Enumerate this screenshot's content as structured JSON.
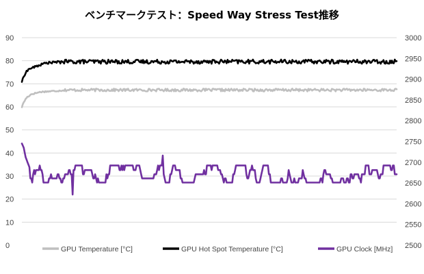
{
  "chart_data": {
    "type": "line",
    "title": "ベンチマークテスト：Speed Way Stress Test推移",
    "xlabel": "",
    "ylabel": "",
    "y_left": {
      "range": [
        0,
        90
      ],
      "ticks": [
        "0",
        "10",
        "20",
        "30",
        "40",
        "50",
        "60",
        "70",
        "80",
        "90"
      ]
    },
    "y_right": {
      "range": [
        2500,
        3000
      ],
      "ticks": [
        "2500",
        "2550",
        "2600",
        "2650",
        "2700",
        "2750",
        "2800",
        "2850",
        "2900",
        "2950",
        "3000"
      ]
    },
    "grid": true,
    "legend_position": "bottom",
    "sample_count": 400,
    "series": [
      {
        "name": "GPU Temperature [°C]",
        "axis": "left",
        "color": "#bfbfbf",
        "start_profile": [
          {
            "x": 0,
            "y": 60
          },
          {
            "x": 2,
            "y": 62
          },
          {
            "x": 5,
            "y": 64
          },
          {
            "x": 10,
            "y": 65.5
          },
          {
            "x": 20,
            "y": 66.5
          },
          {
            "x": 40,
            "y": 67
          }
        ],
        "steady_value": 67.3,
        "jitter": 0.6
      },
      {
        "name": "GPU Hot Spot Temperature [°C]",
        "axis": "left",
        "color": "#000000",
        "start_profile": [
          {
            "x": 0,
            "y": 71
          },
          {
            "x": 2,
            "y": 73
          },
          {
            "x": 4,
            "y": 75
          },
          {
            "x": 8,
            "y": 76.5
          },
          {
            "x": 15,
            "y": 77.5
          },
          {
            "x": 25,
            "y": 79
          },
          {
            "x": 40,
            "y": 79.5
          }
        ],
        "steady_value": 79.6,
        "jitter": 0.9
      },
      {
        "name": "GPU Clock [MHz]",
        "axis": "right",
        "color": "#7030a0",
        "start_profile": [
          {
            "x": 0,
            "y": 2745
          },
          {
            "x": 2,
            "y": 2735
          },
          {
            "x": 4,
            "y": 2712
          },
          {
            "x": 6,
            "y": 2700
          },
          {
            "x": 8,
            "y": 2688
          }
        ],
        "levels": [
          2651,
          2661,
          2671,
          2681,
          2692
        ],
        "spikes": [
          {
            "x": 150,
            "y": 2716
          },
          {
            "x": 54,
            "y": 2622
          }
        ]
      }
    ]
  }
}
